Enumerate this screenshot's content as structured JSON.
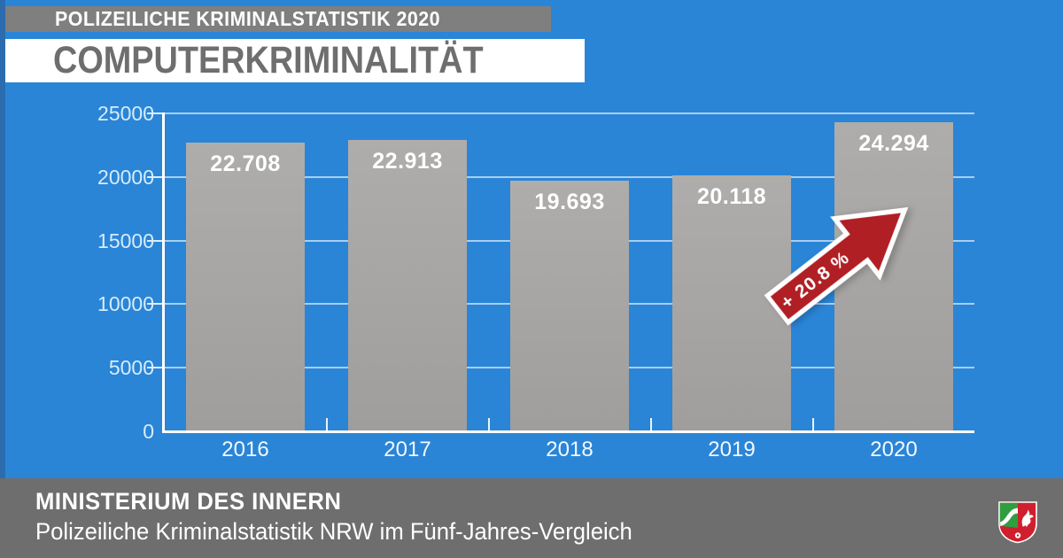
{
  "header": {
    "kicker": "POLIZEILICHE KRIMINALSTATISTIK 2020",
    "title": "COMPUTERKRIMINALITÄT"
  },
  "chart_data": {
    "type": "bar",
    "title": "COMPUTERKRIMINALITÄT",
    "categories": [
      "2016",
      "2017",
      "2018",
      "2019",
      "2020"
    ],
    "values": [
      22708,
      22913,
      19693,
      20118,
      24294
    ],
    "value_labels": [
      "22.708",
      "22.913",
      "19.693",
      "20.118",
      "24.294"
    ],
    "xlabel": "",
    "ylabel": "",
    "ylim": [
      0,
      25000
    ],
    "yticks": [
      0,
      5000,
      10000,
      15000,
      20000,
      25000
    ],
    "ytick_labels": [
      "0",
      "5000",
      "10000",
      "15000",
      "20000",
      "25000"
    ],
    "grid": true,
    "legend": "none",
    "annotation": {
      "text": "+ 20.8 %",
      "type": "increase-arrow",
      "between": [
        "2019",
        "2020"
      ]
    }
  },
  "footer": {
    "org": "MINISTERIUM DES INNERN",
    "subtitle": "Polizeiliche Kriminalstatistik NRW im Fünf-Jahres-Vergleich",
    "logo_icon": "nrw-coat-of-arms"
  },
  "colors": {
    "background": "#2a85d7",
    "left_stripe": "#2b6cae",
    "badge_gray": "#7f7f7f",
    "footer_gray": "#6e6e6e",
    "bar_top": "#aeadab",
    "bar_bottom": "#a09e9c",
    "arrow_red": "#b01f24",
    "tick_label": "#d6ecfb"
  }
}
